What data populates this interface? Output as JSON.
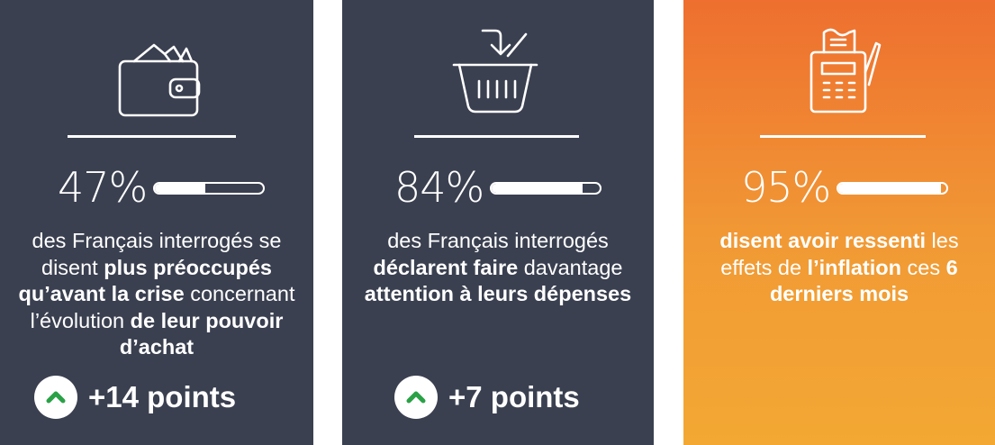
{
  "cards": [
    {
      "icon": "wallet-icon",
      "percent": "47%",
      "progress": 0.47,
      "desc": [
        {
          "t": "des Français interrogés se disent ",
          "b": false
        },
        {
          "t": "plus préoccupés qu’avant la crise",
          "b": true
        },
        {
          "t": " concernant l’évolution ",
          "b": false
        },
        {
          "t": "de leur pouvoir d’achat",
          "b": true
        }
      ],
      "badge": "+14 points"
    },
    {
      "icon": "shopping-basket-icon",
      "percent": "84%",
      "progress": 0.84,
      "desc": [
        {
          "t": "des Français interrogés ",
          "b": false
        },
        {
          "t": "déclarent faire",
          "b": true
        },
        {
          "t": " davantage ",
          "b": false
        },
        {
          "t": "attention à leurs dépenses",
          "b": true
        }
      ],
      "badge": "+7 points"
    },
    {
      "icon": "payment-terminal-icon",
      "percent": "95%",
      "progress": 0.95,
      "desc": [
        {
          "t": "disent avoir ressenti",
          "b": true
        },
        {
          "t": " les effets de ",
          "b": false
        },
        {
          "t": "l’inflation",
          "b": true
        },
        {
          "t": " ces ",
          "b": false
        },
        {
          "t": "6 derniers mois",
          "b": true
        }
      ],
      "badge": ""
    }
  ],
  "colors": {
    "dark_card": "#3a4050",
    "orange_top": "#ee6f2f",
    "orange_bottom": "#f3a833",
    "badge_arrow": "#2aa146"
  }
}
